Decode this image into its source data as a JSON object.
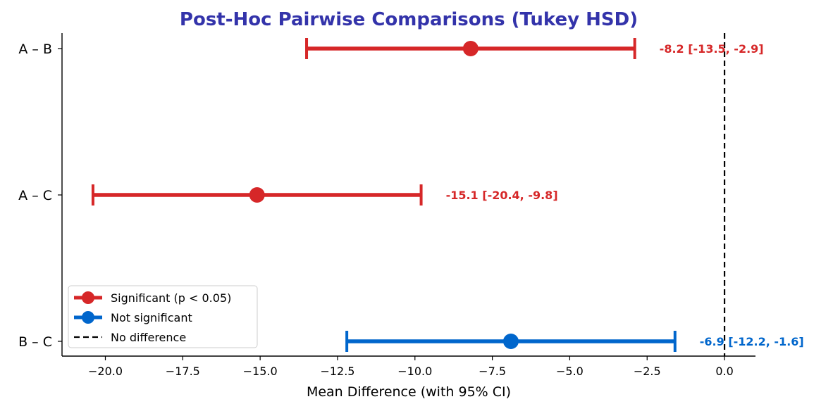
{
  "chart_data": {
    "type": "forest",
    "title": "Post-Hoc Pairwise Comparisons (Tukey HSD)",
    "xlabel": "Mean Difference (with 95% CI)",
    "ylabel": "",
    "xlim": [
      -21.4,
      1.0
    ],
    "xticks": [
      -20.0,
      -17.5,
      -15.0,
      -12.5,
      -10.0,
      -7.5,
      -5.0,
      -2.5,
      0.0
    ],
    "xtick_labels": [
      "−20.0",
      "−17.5",
      "−15.0",
      "−12.5",
      "−10.0",
      "−7.5",
      "−5.0",
      "−2.5",
      "0.0"
    ],
    "reference_line": 0,
    "comparisons": [
      {
        "label": "A – B",
        "mean": -8.2,
        "ci_low": -13.5,
        "ci_high": -2.9,
        "significant": true,
        "annotation": "-8.2 [-13.5, -2.9]"
      },
      {
        "label": "A – C",
        "mean": -15.1,
        "ci_low": -20.4,
        "ci_high": -9.8,
        "significant": true,
        "annotation": "-15.1 [-20.4, -9.8]"
      },
      {
        "label": "B – C",
        "mean": -6.9,
        "ci_low": -12.2,
        "ci_high": -1.6,
        "significant": false,
        "annotation": "-6.9 [-12.2, -1.6]"
      }
    ],
    "legend": {
      "placement": "lower-left",
      "entries": [
        {
          "label": "Significant (p < 0.05)",
          "kind": "sig"
        },
        {
          "label": "Not significant",
          "kind": "nonsig"
        },
        {
          "label": "No difference",
          "kind": "ref"
        }
      ]
    },
    "colors": {
      "significant": "#d62728",
      "not_significant": "#0066cc",
      "title": "#3333aa",
      "reference": "#000000"
    }
  }
}
